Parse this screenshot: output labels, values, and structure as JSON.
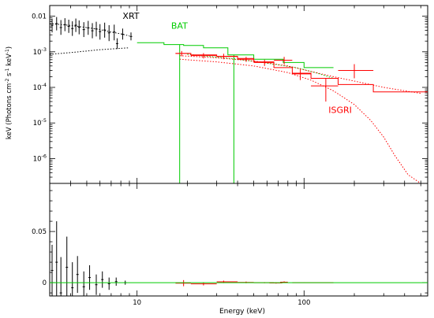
{
  "chart_data": {
    "type": "scatter",
    "x_scale": "log",
    "xlabel": "Energy (keV)",
    "x_ticks": [
      {
        "value": 10,
        "label": "10"
      },
      {
        "value": 100,
        "label": "100"
      }
    ],
    "xlim": [
      3,
      550
    ],
    "panels": [
      {
        "id": "spectrum",
        "y_scale": "log",
        "ylabel": "keV (Photons cm^-2 s^-1 keV^-1)",
        "ylim": [
          2e-07,
          0.02
        ],
        "y_ticks": [
          {
            "value": 0.01,
            "label": "0.01"
          },
          {
            "value": 0.001,
            "label": "10^-3"
          },
          {
            "value": 0.0001,
            "label": "10^-4"
          },
          {
            "value": 1e-05,
            "label": "10^-5"
          },
          {
            "value": 1e-06,
            "label": "10^-6"
          }
        ],
        "annotations": [
          {
            "text": "XRT",
            "x": 8.2,
            "y": 0.0085,
            "color": "#000000"
          },
          {
            "text": "BAT",
            "x": 16,
            "y": 0.0045,
            "color": "#00cc00"
          },
          {
            "text": "ISGRI",
            "x": 140,
            "y": 1.9e-05,
            "color": "#ff0000"
          }
        ],
        "series": [
          {
            "name": "XRT",
            "color": "#000000",
            "points": [
              {
                "x": 3.1,
                "y": 0.0055,
                "yerr": [
                  0.0035,
                  0.0085
                ]
              },
              {
                "x": 3.3,
                "y": 0.0062,
                "yerr": [
                  0.004,
                  0.0095
                ]
              },
              {
                "x": 3.5,
                "y": 0.0048,
                "yerr": [
                  0.003,
                  0.0078
                ]
              },
              {
                "x": 3.7,
                "y": 0.0058,
                "yerr": [
                  0.0038,
                  0.0088
                ]
              },
              {
                "x": 3.9,
                "y": 0.0052,
                "yerr": [
                  0.0034,
                  0.008
                ]
              },
              {
                "x": 4.1,
                "y": 0.0045,
                "yerr": [
                  0.0028,
                  0.0072
                ]
              },
              {
                "x": 4.3,
                "y": 0.0056,
                "yerr": [
                  0.0036,
                  0.0086
                ]
              },
              {
                "x": 4.5,
                "y": 0.0049,
                "yerr": [
                  0.0031,
                  0.0076
                ]
              },
              {
                "x": 4.8,
                "y": 0.0042,
                "yerr": [
                  0.0026,
                  0.0068
                ]
              },
              {
                "x": 5.1,
                "y": 0.0047,
                "yerr": [
                  0.003,
                  0.0074
                ]
              },
              {
                "x": 5.4,
                "y": 0.0039,
                "yerr": [
                  0.0024,
                  0.0064
                ]
              },
              {
                "x": 5.7,
                "y": 0.0044,
                "yerr": [
                  0.0027,
                  0.007
                ]
              },
              {
                "x": 6.0,
                "y": 0.0037,
                "yerr": [
                  0.0022,
                  0.006
                ]
              },
              {
                "x": 6.4,
                "y": 0.0041,
                "yerr": [
                  0.0025,
                  0.0066
                ]
              },
              {
                "x": 6.8,
                "y": 0.0034,
                "yerr": [
                  0.002,
                  0.0056
                ]
              },
              {
                "x": 7.3,
                "y": 0.0036,
                "yerr": [
                  0.0021,
                  0.0058
                ]
              },
              {
                "x": 7.6,
                "y": 0.0017,
                "yerr": [
                  0.0012,
                  0.0024
                ]
              },
              {
                "x": 8.2,
                "y": 0.0031,
                "yerr": [
                  0.0022,
                  0.0045
                ]
              },
              {
                "x": 9.2,
                "y": 0.0027,
                "yerr": [
                  0.0021,
                  0.0035
                ]
              }
            ]
          },
          {
            "name": "BAT",
            "color": "#00cc00",
            "steps": [
              {
                "x0": 10,
                "x1": 14.5,
                "y": 0.0018
              },
              {
                "x0": 14.5,
                "x1": 19,
                "y": 0.0016
              },
              {
                "x0": 19,
                "x1": 25,
                "y": 0.0015
              },
              {
                "x0": 25,
                "x1": 35,
                "y": 0.0013
              },
              {
                "x0": 35,
                "x1": 50,
                "y": 0.00082
              },
              {
                "x0": 50,
                "x1": 75,
                "y": 0.00062
              },
              {
                "x0": 75,
                "x1": 100,
                "y": 0.0005
              },
              {
                "x0": 100,
                "x1": 150,
                "y": 0.00036
              }
            ],
            "spikes": [
              {
                "x": 18,
                "y_low": 2e-07
              },
              {
                "x": 38,
                "y_low": 2e-07
              }
            ]
          },
          {
            "name": "ISGRI",
            "color": "#ff0000",
            "points": [
              {
                "x": 18.5,
                "y": 0.0009,
                "xerr": [
                  17,
                  21
                ],
                "yerr": [
                  0.00075,
                  0.00105
                ]
              },
              {
                "x": 25,
                "y": 0.00078,
                "xerr": [
                  21,
                  30
                ],
                "yerr": [
                  0.00065,
                  0.00092
                ]
              },
              {
                "x": 33,
                "y": 0.00075,
                "xerr": [
                  30,
                  40
                ],
                "yerr": [
                  0.00062,
                  0.00088
                ]
              },
              {
                "x": 45,
                "y": 0.00062,
                "xerr": [
                  40,
                  50
                ],
                "yerr": [
                  0.00052,
                  0.00072
                ]
              },
              {
                "x": 58,
                "y": 0.0005,
                "xerr": [
                  50,
                  66
                ],
                "yerr": [
                  0.0004,
                  0.0006
                ]
              },
              {
                "x": 76,
                "y": 0.00058,
                "xerr": [
                  66,
                  85
                ],
                "yerr": [
                  0.00044,
                  0.00072
                ]
              },
              {
                "x": 95,
                "y": 0.00024,
                "xerr": [
                  85,
                  110
                ],
                "yerr": [
                  0.00016,
                  0.00032
                ]
              },
              {
                "x": 135,
                "y": 0.00011,
                "xerr": [
                  110,
                  160
                ],
                "yerr": [
                  4e-05,
                  0.00018
                ]
              },
              {
                "x": 200,
                "y": 0.0003,
                "xerr": [
                  160,
                  260
                ],
                "yerr": [
                  0.00018,
                  0.00045
                ]
              }
            ],
            "steps": [
              {
                "x0": 17,
                "x1": 21,
                "y": 0.0009
              },
              {
                "x0": 21,
                "x1": 30,
                "y": 0.00082
              },
              {
                "x0": 30,
                "x1": 40,
                "y": 0.00074
              },
              {
                "x0": 40,
                "x1": 50,
                "y": 0.00065
              },
              {
                "x0": 50,
                "x1": 66,
                "y": 0.00052
              },
              {
                "x0": 66,
                "x1": 85,
                "y": 0.00036
              },
              {
                "x0": 85,
                "x1": 110,
                "y": 0.00025
              },
              {
                "x0": 110,
                "x1": 160,
                "y": 0.00018
              },
              {
                "x0": 160,
                "x1": 260,
                "y": 0.00012
              },
              {
                "x0": 260,
                "x1": 550,
                "y": 7.5e-05
              }
            ]
          }
        ],
        "model_curves": [
          {
            "color": "#000000",
            "style": "dotted",
            "points": [
              [
                3,
                0.0062
              ],
              [
                4,
                0.0055
              ],
              [
                5,
                0.0048
              ],
              [
                6,
                0.0042
              ],
              [
                7,
                0.0036
              ],
              [
                8,
                0.0032
              ],
              [
                9,
                0.0028
              ]
            ]
          },
          {
            "color": "#000000",
            "style": "dotted",
            "points": [
              [
                3,
                0.00085
              ],
              [
                4,
                0.00095
              ],
              [
                5,
                0.00105
              ],
              [
                6,
                0.00115
              ],
              [
                7,
                0.0012
              ],
              [
                8,
                0.00125
              ],
              [
                9,
                0.0013
              ]
            ]
          },
          {
            "color": "#00cc00",
            "style": "dotted",
            "points": [
              [
                20,
                0.00085
              ],
              [
                40,
                0.00062
              ],
              [
                60,
                0.00048
              ],
              [
                90,
                0.00036
              ],
              [
                120,
                0.00025
              ],
              [
                150,
                0.00018
              ]
            ]
          },
          {
            "color": "#ff0000",
            "style": "dotted",
            "points": [
              [
                18,
                0.00062
              ],
              [
                30,
                0.00052
              ],
              [
                50,
                0.0004
              ],
              [
                80,
                0.00026
              ],
              [
                110,
                0.00016
              ],
              [
                150,
                8e-05
              ],
              [
                200,
                3.3e-05
              ],
              [
                250,
                1.2e-05
              ],
              [
                300,
                4e-06
              ],
              [
                350,
                1.2e-06
              ],
              [
                420,
                3.5e-07
              ],
              [
                500,
                2e-07
              ]
            ]
          },
          {
            "color": "#ff0000",
            "style": "dotted",
            "points": [
              [
                18,
                0.00078
              ],
              [
                30,
                0.00068
              ],
              [
                50,
                0.00055
              ],
              [
                80,
                0.0004
              ],
              [
                110,
                0.00028
              ],
              [
                150,
                0.0002
              ],
              [
                200,
                0.00015
              ],
              [
                300,
                0.0001
              ],
              [
                500,
                6.8e-05
              ]
            ]
          }
        ]
      },
      {
        "id": "residuals",
        "y_scale": "linear",
        "ylim": [
          -0.013,
          0.097
        ],
        "y_ticks": [
          {
            "value": 0.05,
            "label": "0.05"
          },
          {
            "value": 0,
            "label": "0"
          }
        ],
        "series": [
          {
            "name": "XRT residuals",
            "color": "#000000",
            "points": [
              {
                "x": 3.1,
                "y": 0.012,
                "yerr": 0.025
              },
              {
                "x": 3.3,
                "y": 0.02,
                "yerr": 0.04
              },
              {
                "x": 3.5,
                "y": -0.01,
                "yerr": 0.035
              },
              {
                "x": 3.8,
                "y": 0.015,
                "yerr": 0.03
              },
              {
                "x": 4.1,
                "y": -0.005,
                "yerr": 0.025
              },
              {
                "x": 4.4,
                "y": 0.008,
                "yerr": 0.018
              },
              {
                "x": 4.8,
                "y": -0.004,
                "yerr": 0.015
              },
              {
                "x": 5.2,
                "y": 0.005,
                "yerr": 0.012
              },
              {
                "x": 5.7,
                "y": -0.002,
                "yerr": 0.01
              },
              {
                "x": 6.2,
                "y": 0.003,
                "yerr": 0.008
              },
              {
                "x": 6.8,
                "y": -0.001,
                "yerr": 0.006
              },
              {
                "x": 7.5,
                "y": 0.001,
                "yerr": 0.004
              },
              {
                "x": 8.5,
                "y": 0.0,
                "yerr": 0.002
              }
            ]
          },
          {
            "name": "ISGRI residuals",
            "color": "#ff0000",
            "points": [
              {
                "x": 19,
                "y": -0.0005,
                "xerr": [
                  17,
                  21
                ],
                "yerr": 0.003
              },
              {
                "x": 25,
                "y": -0.0012,
                "xerr": [
                  21,
                  30
                ],
                "yerr": 0.0015
              },
              {
                "x": 33,
                "y": 0.0008,
                "xerr": [
                  30,
                  40
                ],
                "yerr": 0.0012
              },
              {
                "x": 45,
                "y": 0.0003,
                "xerr": [
                  40,
                  50
                ],
                "yerr": 0.0008
              },
              {
                "x": 58,
                "y": 0.0,
                "xerr": [
                  50,
                  66
                ],
                "yerr": 0.0005
              },
              {
                "x": 68,
                "y": -0.0003,
                "xerr": [
                  62,
                  74
                ],
                "yerr": 0.0006
              },
              {
                "x": 76,
                "y": 0.0005,
                "xerr": [
                  72,
                  80
                ],
                "yerr": 0.0008
              },
              {
                "x": 100,
                "y": 0.0,
                "xerr": [
                  85,
                  150
                ],
                "yerr": 0.0003
              }
            ]
          },
          {
            "name": "BAT residuals",
            "color": "#00cc00",
            "steps": [
              {
                "x0": 3,
                "x1": 550,
                "y": 0.0
              }
            ]
          }
        ]
      }
    ]
  }
}
